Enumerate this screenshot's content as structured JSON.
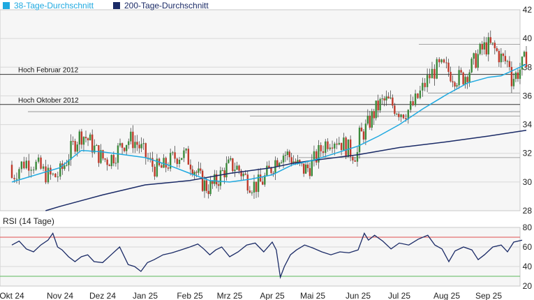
{
  "legend": [
    {
      "label": "38-Tage-Durchschnitt",
      "color": "#1fa9e0"
    },
    {
      "label": "200-Tage-Durchschnitt",
      "color": "#1a2a66"
    }
  ],
  "rsi_title": "RSI (14 Tage)",
  "colors": {
    "up": "#3b8a3b",
    "down": "#c0392b",
    "ma38": "#1fa9e0",
    "ma200": "#1a2a66",
    "rsi": "#1a2a66",
    "rsi_upper": "#e05050",
    "rsi_lower": "#5cb85c",
    "grid": "#d8d8d8"
  },
  "chart_data": [
    {
      "type": "candlestick",
      "x_ticks": [
        "Okt 24",
        "Nov 24",
        "Dez 24",
        "Jan 25",
        "Feb 25",
        "Mrz 25",
        "Apr 25",
        "Mai 25",
        "Jun 25",
        "Jul 25",
        "Aug 25",
        "Sep 25"
      ],
      "y_ticks": [
        28,
        30,
        32,
        34,
        36,
        38,
        40,
        42
      ],
      "ylim": [
        28,
        42
      ],
      "grid": true,
      "legend_position": "top-left",
      "horizontal_lines": [
        {
          "label": "Hoch Februar 2012",
          "value": 37.5
        },
        {
          "label": "Hoch Oktober 2012",
          "value": 35.4
        }
      ],
      "reference_levels": [
        39.6,
        36.2,
        34.9,
        34.6,
        31.7
      ],
      "series": [
        {
          "name": "38-Tage-Durchschnitt",
          "points": [
            [
              0,
              30
            ],
            [
              1,
              31
            ],
            [
              1.5,
              32.2
            ],
            [
              2,
              32.1
            ],
            [
              2.5,
              31.9
            ],
            [
              3,
              31.7
            ],
            [
              3.5,
              31.2
            ],
            [
              4,
              30.6
            ],
            [
              4.5,
              30.1
            ],
            [
              5,
              30
            ],
            [
              5.5,
              30.2
            ],
            [
              6,
              30.5
            ],
            [
              6.5,
              31.2
            ],
            [
              7,
              31.5
            ],
            [
              7.5,
              32
            ],
            [
              8,
              32.5
            ],
            [
              8.5,
              33.2
            ],
            [
              9,
              34
            ],
            [
              9.5,
              35.1
            ],
            [
              10,
              36.1
            ],
            [
              10.5,
              36.9
            ],
            [
              11,
              37.3
            ],
            [
              11.3,
              37.4
            ],
            [
              11.6,
              37.8
            ],
            [
              11.9,
              38.2
            ]
          ]
        },
        {
          "name": "200-Tage-Durchschnitt",
          "points": [
            [
              0.7,
              28
            ],
            [
              1,
              28.3
            ],
            [
              2,
              29.1
            ],
            [
              3,
              29.8
            ],
            [
              4,
              30.1
            ],
            [
              5,
              30.6
            ],
            [
              6,
              31
            ],
            [
              6.5,
              31.3
            ],
            [
              7,
              31.5
            ],
            [
              8,
              31.9
            ],
            [
              9,
              32.4
            ],
            [
              10,
              32.8
            ],
            [
              11,
              33.2
            ],
            [
              11.9,
              33.6
            ]
          ]
        }
      ]
    },
    {
      "type": "line",
      "title": "RSI (14 Tage)",
      "y_ticks": [
        20,
        40,
        60,
        80
      ],
      "ylim": [
        20,
        80
      ],
      "upper_band": 70,
      "lower_band": 30,
      "series": [
        {
          "name": "",
          "points": [
            [
              0,
              62
            ],
            [
              0.15,
              66
            ],
            [
              0.3,
              58
            ],
            [
              0.45,
              55
            ],
            [
              0.6,
              62
            ],
            [
              0.75,
              67
            ],
            [
              0.85,
              74
            ],
            [
              0.95,
              60
            ],
            [
              1.05,
              57
            ],
            [
              1.2,
              50
            ],
            [
              1.35,
              45
            ],
            [
              1.5,
              50
            ],
            [
              1.65,
              52
            ],
            [
              1.8,
              45
            ],
            [
              2,
              44
            ],
            [
              2.2,
              52
            ],
            [
              2.4,
              60
            ],
            [
              2.6,
              42
            ],
            [
              2.75,
              40
            ],
            [
              2.9,
              35
            ],
            [
              3.05,
              44
            ],
            [
              3.2,
              47
            ],
            [
              3.4,
              52
            ],
            [
              3.6,
              54
            ],
            [
              3.8,
              57
            ],
            [
              4,
              60
            ],
            [
              4.2,
              63
            ],
            [
              4.35,
              58
            ],
            [
              4.5,
              52
            ],
            [
              4.65,
              57
            ],
            [
              4.8,
              60
            ],
            [
              5,
              50
            ],
            [
              5.2,
              55
            ],
            [
              5.4,
              62
            ],
            [
              5.6,
              64
            ],
            [
              5.8,
              55
            ],
            [
              6,
              65
            ],
            [
              6.1,
              57
            ],
            [
              6.2,
              29
            ],
            [
              6.3,
              40
            ],
            [
              6.45,
              52
            ],
            [
              6.6,
              57
            ],
            [
              6.8,
              62
            ],
            [
              7,
              59
            ],
            [
              7.2,
              55
            ],
            [
              7.4,
              52
            ],
            [
              7.6,
              55
            ],
            [
              7.8,
              54
            ],
            [
              8,
              57
            ],
            [
              8.15,
              74
            ],
            [
              8.25,
              67
            ],
            [
              8.4,
              72
            ],
            [
              8.6,
              66
            ],
            [
              8.8,
              58
            ],
            [
              9,
              64
            ],
            [
              9.2,
              62
            ],
            [
              9.4,
              68
            ],
            [
              9.6,
              72
            ],
            [
              9.75,
              62
            ],
            [
              9.9,
              58
            ],
            [
              10.05,
              45
            ],
            [
              10.2,
              56
            ],
            [
              10.4,
              60
            ],
            [
              10.6,
              57
            ],
            [
              10.75,
              47
            ],
            [
              10.9,
              52
            ],
            [
              11.1,
              60
            ],
            [
              11.3,
              62
            ],
            [
              11.45,
              55
            ],
            [
              11.6,
              65
            ],
            [
              11.8,
              67
            ]
          ]
        }
      ]
    }
  ]
}
